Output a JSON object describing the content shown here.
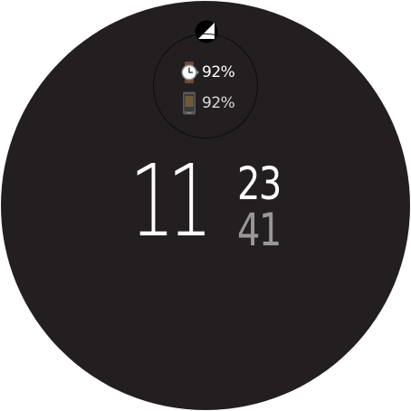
{
  "watch_face": {
    "background_color": "#231f20",
    "signal_icon": "cell-signal-icon",
    "battery": {
      "watch": {
        "icon": "watch-icon",
        "value": "92%"
      },
      "phone": {
        "icon": "phone-icon",
        "value": "92%"
      }
    },
    "time": {
      "hour": "11",
      "minute": "23",
      "second": "41"
    },
    "colors": {
      "primary_text": "#ffffff",
      "secondary_text": "#9a9798"
    }
  }
}
